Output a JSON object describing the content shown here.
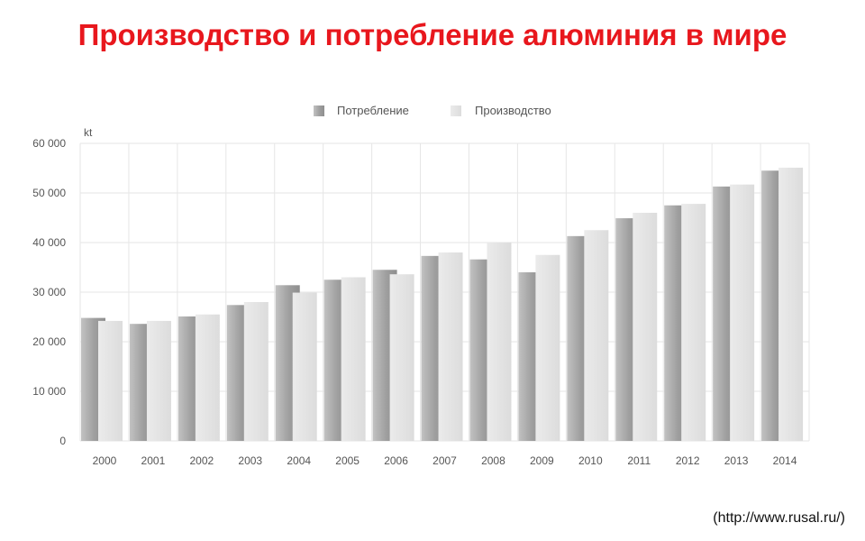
{
  "title": "Производство и потребление алюминия в мире",
  "source": "(http://www.rusal.ru/)",
  "colors": {
    "title": "#e8171d",
    "consumption": "#a9a9a9",
    "production": "#e3e3e3",
    "grid": "#e6e6e6"
  },
  "chart_data": {
    "type": "bar",
    "title": "",
    "xlabel": "",
    "ylabel": "",
    "unit": "kt",
    "categories": [
      "2000",
      "2001",
      "2002",
      "2003",
      "2004",
      "2005",
      "2006",
      "2007",
      "2008",
      "2009",
      "2010",
      "2011",
      "2012",
      "2013",
      "2014"
    ],
    "series": [
      {
        "name": "Потребление",
        "values": [
          24800,
          23600,
          25100,
          27400,
          31400,
          32500,
          34500,
          37300,
          36600,
          34000,
          41300,
          44900,
          47500,
          51300,
          54500
        ]
      },
      {
        "name": "Производство",
        "values": [
          24200,
          24200,
          25500,
          28000,
          29900,
          33000,
          33600,
          38000,
          40000,
          37500,
          42500,
          46000,
          47800,
          51700,
          55100
        ]
      }
    ],
    "ylim": [
      0,
      60000
    ],
    "yticks": [
      {
        "value": 0,
        "label": "0"
      },
      {
        "value": 10000,
        "label": "10 000"
      },
      {
        "value": 20000,
        "label": "20 000"
      },
      {
        "value": 30000,
        "label": "30 000"
      },
      {
        "value": 40000,
        "label": "40 000"
      },
      {
        "value": 50000,
        "label": "50 000"
      },
      {
        "value": 60000,
        "label": "60 000"
      }
    ],
    "grid": true,
    "legend": "top-center"
  }
}
